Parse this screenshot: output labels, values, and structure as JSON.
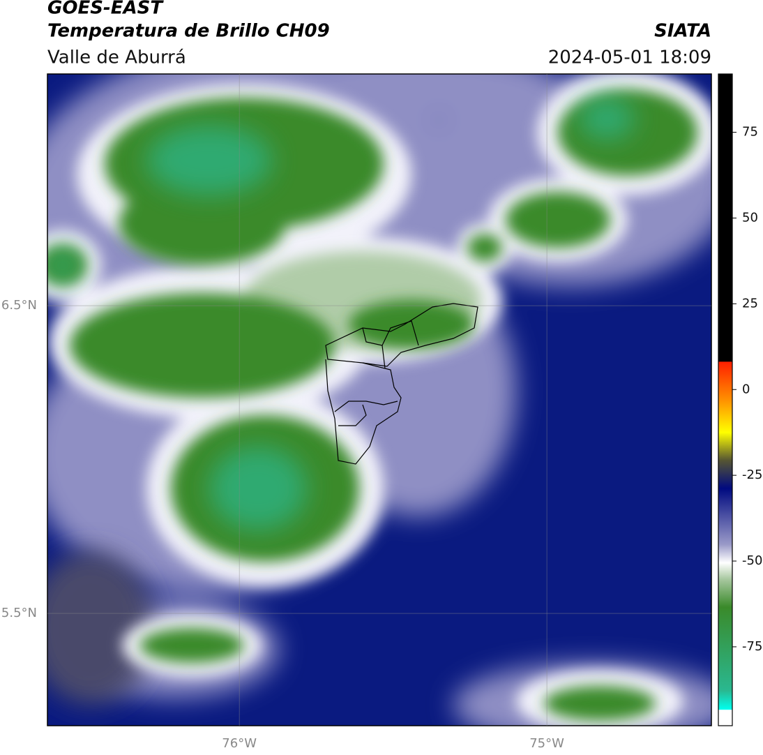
{
  "header": {
    "satellite": "GOES-EAST",
    "product": "Temperatura de Brillo CH09",
    "region": "Valle de Aburrá",
    "agency": "SIATA",
    "datetime": "2024-05-01 18:09"
  },
  "map": {
    "xlim": [
      -76.624,
      -74.465
    ],
    "ylim": [
      5.135,
      7.253
    ],
    "xticks": [
      {
        "value": -76,
        "label": "76°W"
      },
      {
        "value": -75,
        "label": "75°W"
      }
    ],
    "yticks": [
      {
        "value": 6.5,
        "label": "6.5°N"
      },
      {
        "value": 5.5,
        "label": "5.5°N"
      }
    ],
    "grid": true
  },
  "colorbar": {
    "lim": [
      -98,
      92
    ],
    "ticks": [
      75,
      50,
      25,
      0,
      -25,
      -50,
      -75
    ]
  }
}
